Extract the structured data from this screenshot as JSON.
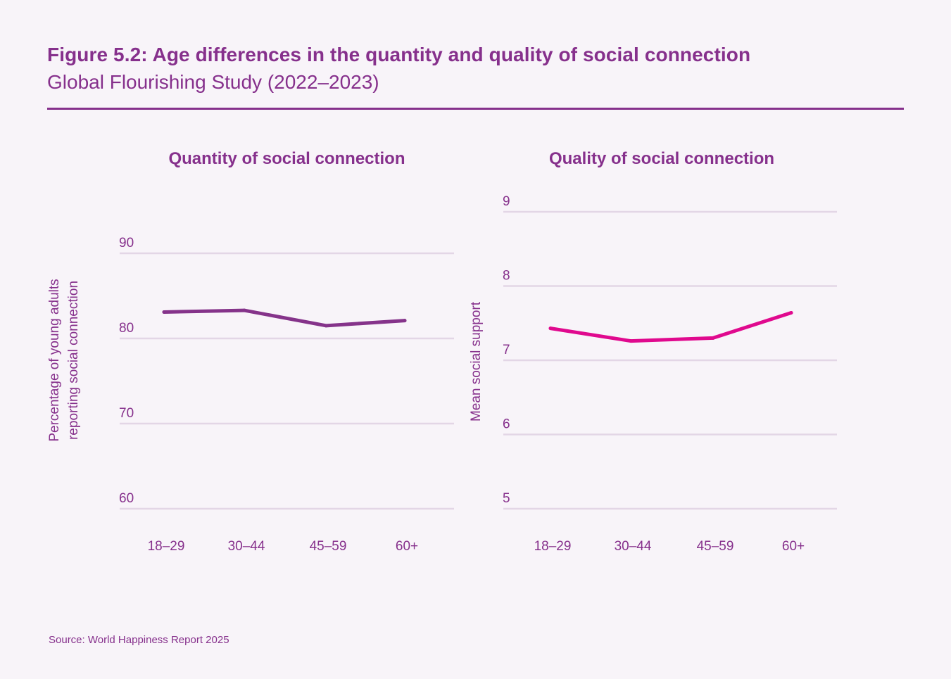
{
  "header": {
    "title": "Figure 5.2: Age differences in the quantity and quality of social connection",
    "subtitle": "Global Flourishing Study (2022–2023)"
  },
  "colors": {
    "accent": "#86308c",
    "left_line": "#85338a",
    "right_line": "#e0098e",
    "grid": "#e3d6e6",
    "background": "#f8f4f9"
  },
  "chart_data": [
    {
      "type": "line",
      "title": "Quantity of social connection",
      "xlabel": "",
      "ylabel": "Percentage of young adults reporting social connection",
      "ylabel_lines": [
        "Percentage of young adults",
        "reporting social connection"
      ],
      "categories": [
        "18–29",
        "30–44",
        "45–59",
        "60+"
      ],
      "values": [
        83.1,
        83.3,
        81.5,
        82.1
      ],
      "ylim": [
        60,
        90
      ],
      "yticks": [
        60,
        70,
        80,
        90
      ],
      "grid": true,
      "legend": "none"
    },
    {
      "type": "line",
      "title": "Quality of social connection",
      "xlabel": "",
      "ylabel": "Mean social support",
      "ylabel_lines": [
        "Mean social support"
      ],
      "categories": [
        "18–29",
        "30–44",
        "45–59",
        "60+"
      ],
      "values": [
        7.43,
        7.26,
        7.3,
        7.64
      ],
      "ylim": [
        5,
        9
      ],
      "yticks": [
        5,
        6,
        7,
        8,
        9
      ],
      "grid": true,
      "legend": "none"
    }
  ],
  "footer": {
    "source": "Source: World Happiness Report 2025"
  }
}
